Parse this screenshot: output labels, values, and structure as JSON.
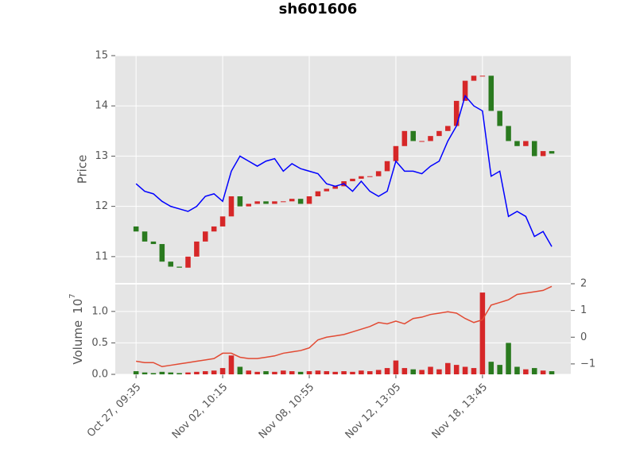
{
  "chart_data": [
    {
      "type": "candlestick",
      "title": "sh601606",
      "ylabel": "Price",
      "ylim": [
        10.46,
        15.0
      ],
      "yticks": [
        11,
        12,
        13,
        14,
        15
      ],
      "grid": true,
      "x": [
        0,
        1,
        2,
        3,
        4,
        5,
        6,
        7,
        8,
        9,
        10,
        11,
        12,
        13,
        14,
        15,
        16,
        17,
        18,
        19,
        20,
        21,
        22,
        23,
        24,
        25,
        26,
        27,
        28,
        29,
        30,
        31,
        32,
        33,
        34,
        35,
        36,
        37,
        38,
        39,
        40,
        41,
        42,
        43,
        44,
        45,
        46,
        47,
        48
      ],
      "up_color": "#d62728",
      "down_color": "#2a7a1f",
      "open": [
        11.6,
        11.5,
        11.3,
        11.25,
        10.9,
        10.8,
        10.78,
        11.0,
        11.3,
        11.5,
        11.6,
        11.8,
        12.2,
        12.0,
        12.05,
        12.1,
        12.05,
        12.1,
        12.1,
        12.15,
        12.05,
        12.2,
        12.3,
        12.35,
        12.4,
        12.5,
        12.55,
        12.6,
        12.6,
        12.7,
        12.9,
        13.2,
        13.5,
        13.3,
        13.3,
        13.4,
        13.5,
        13.6,
        14.1,
        14.5,
        14.6,
        14.6,
        13.9,
        13.6,
        13.3,
        13.2,
        13.3,
        13.0,
        13.1
      ],
      "close": [
        11.5,
        11.3,
        11.25,
        10.9,
        10.8,
        10.78,
        11.0,
        11.3,
        11.5,
        11.6,
        11.8,
        12.2,
        12.0,
        12.05,
        12.1,
        12.05,
        12.1,
        12.1,
        12.15,
        12.05,
        12.2,
        12.3,
        12.35,
        12.4,
        12.5,
        12.55,
        12.6,
        12.6,
        12.7,
        12.9,
        13.2,
        13.5,
        13.3,
        13.3,
        13.4,
        13.5,
        13.6,
        14.1,
        14.5,
        14.6,
        14.6,
        13.9,
        13.6,
        13.3,
        13.2,
        13.3,
        13.0,
        13.1,
        13.05
      ],
      "series": [
        {
          "color": "#0000ff",
          "values": [
            12.45,
            12.3,
            12.25,
            12.1,
            12.0,
            11.95,
            11.9,
            12.0,
            12.2,
            12.25,
            12.1,
            12.7,
            13.0,
            12.9,
            12.8,
            12.9,
            12.95,
            12.7,
            12.85,
            12.75,
            12.7,
            12.65,
            12.45,
            12.4,
            12.45,
            12.3,
            12.5,
            12.3,
            12.2,
            12.3,
            12.9,
            12.7,
            12.7,
            12.65,
            12.8,
            12.9,
            13.3,
            13.6,
            14.2,
            14.0,
            13.9,
            12.6,
            12.7,
            11.8,
            11.9,
            11.8,
            11.4,
            11.5,
            11.2
          ]
        }
      ]
    },
    {
      "type": "bar",
      "ylabel": "Volume",
      "offset_base": "10",
      "offset_exponent": "7",
      "xlim": [
        -2.4,
        50.2
      ],
      "xticks": [
        {
          "value": 0,
          "label": "Oct 27, 09:35"
        },
        {
          "value": 10,
          "label": "Nov 02, 10:15"
        },
        {
          "value": 20,
          "label": "Nov 08, 10:55"
        },
        {
          "value": 30,
          "label": "Nov 12, 13:05"
        },
        {
          "value": 40,
          "label": "Nov 18, 13:45"
        }
      ],
      "ylim": [
        0,
        1.44
      ],
      "yticks": [
        {
          "value": 0,
          "label": "0.0"
        },
        {
          "value": 0.5,
          "label": "0.5"
        },
        {
          "value": 1.0,
          "label": "1.0"
        }
      ],
      "y2lim": [
        -1.39,
        2.0
      ],
      "y2ticks": [
        {
          "value": -1,
          "label": "−1"
        },
        0,
        1,
        2
      ],
      "grid": true,
      "values": [
        0.05,
        0.03,
        0.02,
        0.04,
        0.03,
        0.02,
        0.03,
        0.04,
        0.05,
        0.06,
        0.1,
        0.3,
        0.12,
        0.06,
        0.04,
        0.05,
        0.04,
        0.06,
        0.05,
        0.04,
        0.05,
        0.06,
        0.05,
        0.04,
        0.05,
        0.04,
        0.06,
        0.05,
        0.07,
        0.1,
        0.22,
        0.1,
        0.08,
        0.07,
        0.12,
        0.08,
        0.18,
        0.15,
        0.12,
        0.1,
        1.3,
        0.2,
        0.15,
        0.5,
        0.12,
        0.08,
        0.1,
        0.06,
        0.05
      ],
      "series": [
        {
          "color": "#e24a33",
          "axis": "y2",
          "values": [
            -0.9,
            -0.95,
            -0.95,
            -1.1,
            -1.05,
            -1.0,
            -0.95,
            -0.9,
            -0.85,
            -0.8,
            -0.6,
            -0.6,
            -0.75,
            -0.8,
            -0.8,
            -0.75,
            -0.7,
            -0.6,
            -0.55,
            -0.5,
            -0.4,
            -0.1,
            0.0,
            0.05,
            0.1,
            0.2,
            0.3,
            0.4,
            0.55,
            0.5,
            0.6,
            0.5,
            0.7,
            0.75,
            0.85,
            0.9,
            0.95,
            0.9,
            0.7,
            0.55,
            0.65,
            1.2,
            1.3,
            1.4,
            1.6,
            1.65,
            1.7,
            1.75,
            1.9
          ]
        }
      ]
    }
  ]
}
